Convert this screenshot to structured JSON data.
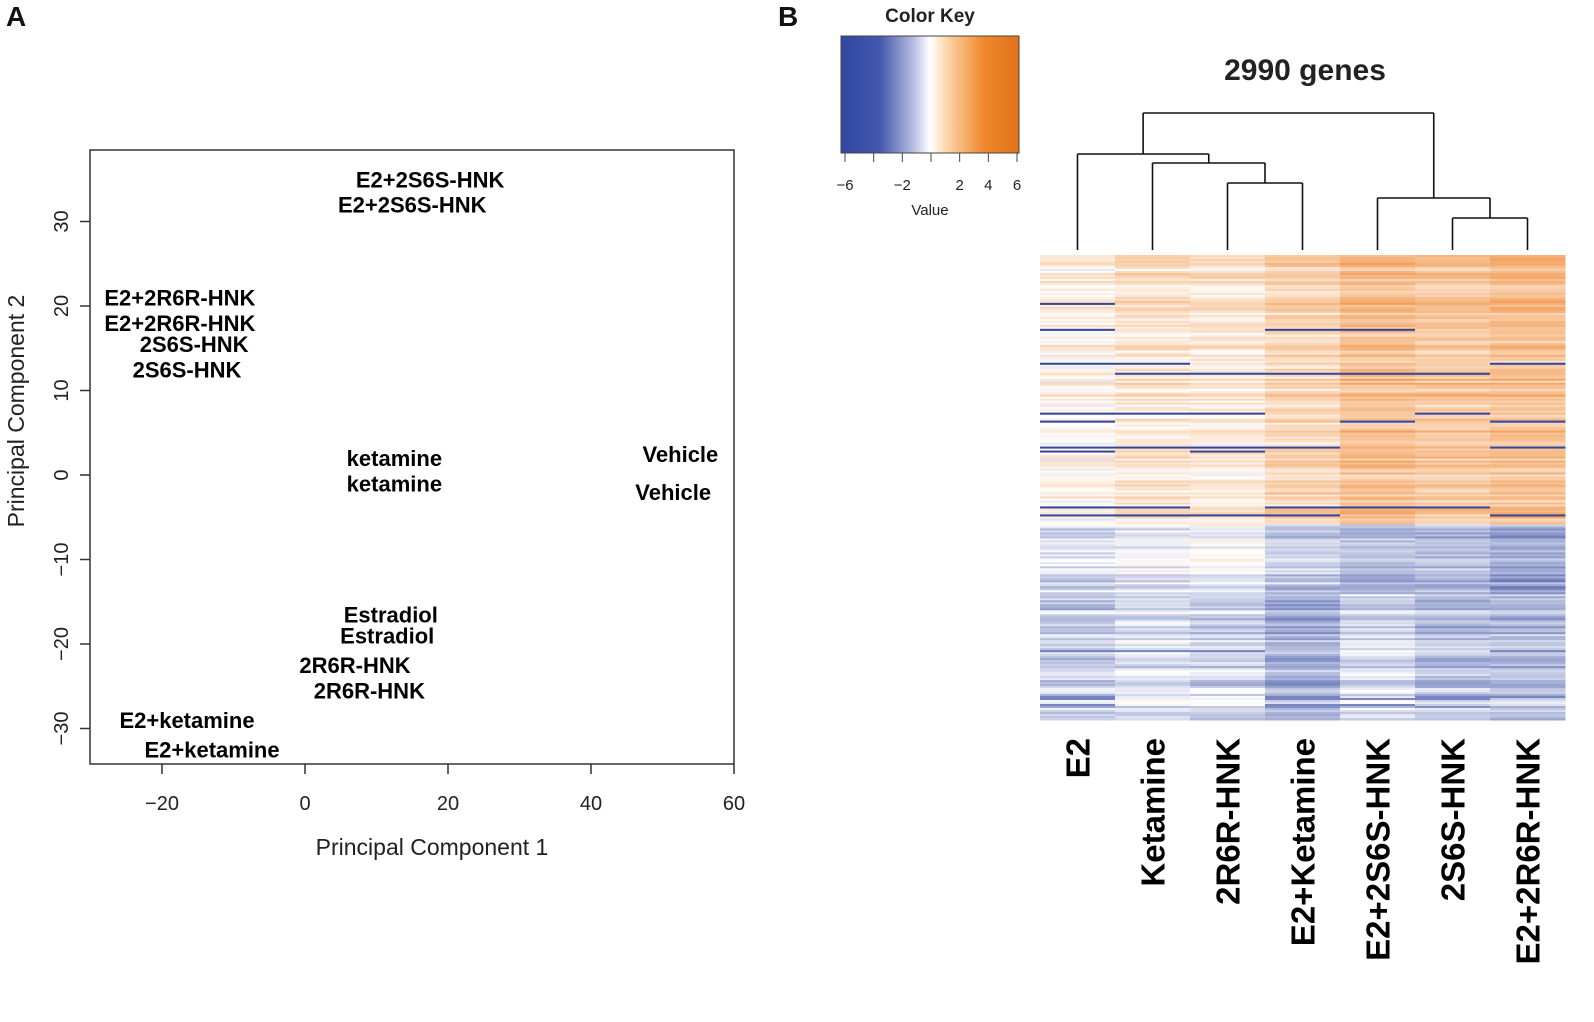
{
  "panels": {
    "a": "A",
    "b": "B"
  },
  "chart_data": [
    {
      "type": "scatter",
      "panel": "A",
      "title": "",
      "xlabel": "Principal Component 1",
      "ylabel": "Principal Component 2",
      "xlim": [
        -30,
        60
      ],
      "ylim": [
        -34,
        38
      ],
      "xticks": [
        -20,
        0,
        20,
        40,
        60
      ],
      "yticks": [
        -30,
        -20,
        -10,
        0,
        10,
        20,
        30
      ],
      "grid": false,
      "points": [
        {
          "label": "E2+2S6S-HNK",
          "x": 17.5,
          "y": 35.0
        },
        {
          "label": "E2+2S6S-HNK",
          "x": 15.0,
          "y": 32.0
        },
        {
          "label": "E2+2R6R-HNK",
          "x": -17.5,
          "y": 21.0
        },
        {
          "label": "E2+2R6R-HNK",
          "x": -17.5,
          "y": 18.0
        },
        {
          "label": "2S6S-HNK",
          "x": -15.5,
          "y": 15.5
        },
        {
          "label": "2S6S-HNK",
          "x": -16.5,
          "y": 12.5
        },
        {
          "label": "ketamine",
          "x": 12.5,
          "y": 2.0
        },
        {
          "label": "ketamine",
          "x": 12.5,
          "y": -1.0
        },
        {
          "label": "Vehicle",
          "x": 52.5,
          "y": 2.5
        },
        {
          "label": "Vehicle",
          "x": 51.5,
          "y": -2.0
        },
        {
          "label": "Estradiol",
          "x": 12.0,
          "y": -16.5
        },
        {
          "label": "Estradiol",
          "x": 11.5,
          "y": -19.0
        },
        {
          "label": "2R6R-HNK",
          "x": 7.0,
          "y": -22.5
        },
        {
          "label": "2R6R-HNK",
          "x": 9.0,
          "y": -25.5
        },
        {
          "label": "E2+ketamine",
          "x": -16.5,
          "y": -29.0
        },
        {
          "label": "E2+ketamine",
          "x": -13.0,
          "y": -32.5
        }
      ]
    },
    {
      "type": "heatmap",
      "panel": "B",
      "title": "2990 genes",
      "color_key": {
        "title": "Color Key",
        "xlabel": "Value",
        "range": [
          -6,
          6
        ],
        "ticks": [
          -6,
          -2,
          2,
          4,
          6
        ],
        "low_color": "#3046a0",
        "mid_color": "#ffffff",
        "high_color": "#ee7d1e"
      },
      "columns": [
        "E2",
        "Ketamine",
        "2R6R-HNK",
        "E2+Ketamine",
        "E2+2S6S-HNK",
        "2S6S-HNK",
        "E2+2R6R-HNK"
      ],
      "dendrogram": {
        "merges": [
          {
            "left": "2R6R-HNK",
            "right": "E2+Ketamine",
            "height": 1
          },
          {
            "left": "Ketamine",
            "right": "2R6R-HNK,E2+Ketamine",
            "height": 2
          },
          {
            "left": "2S6S-HNK",
            "right": "E2+2R6R-HNK",
            "height": 1
          },
          {
            "left": "E2+2S6S-HNK",
            "right": "2S6S-HNK,E2+2R6R-HNK",
            "height": 2
          },
          {
            "left": "E2",
            "right": "Ketamine,2R6R-HNK,E2+Ketamine",
            "height": 3
          },
          {
            "left": "E2-Ketamine-HNK cluster",
            "right": "E2+2S6S-HNK-2S6S-HNK-E2+2R6R-HNK cluster",
            "height": 4
          }
        ]
      },
      "row_blocks": [
        {
          "name": "upper",
          "fraction": 0.58,
          "means": [
            0.6,
            1.3,
            1.1,
            2.0,
            3.0,
            2.6,
            2.9
          ]
        },
        {
          "name": "middle",
          "fraction": 0.15,
          "means": [
            -1.2,
            -0.7,
            -0.4,
            -1.8,
            -2.4,
            -2.3,
            -3.0
          ]
        },
        {
          "name": "lower",
          "fraction": 0.27,
          "means": [
            -1.6,
            -1.0,
            -1.3,
            -2.5,
            -1.1,
            -2.0,
            -2.1
          ]
        }
      ]
    }
  ]
}
